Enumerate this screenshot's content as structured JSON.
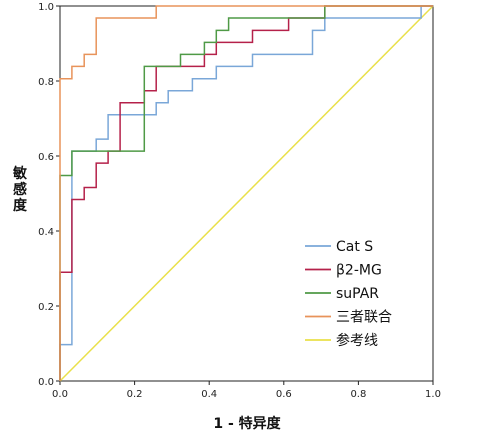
{
  "chart_data": {
    "type": "line",
    "title": "",
    "xlabel": "1 - 特异度",
    "ylabel": "敏感度",
    "xlim": [
      0,
      1
    ],
    "ylim": [
      0,
      1
    ],
    "x_ticks": [
      "0.0",
      "0.2",
      "0.4",
      "0.6",
      "0.8",
      "1.0"
    ],
    "y_ticks": [
      "0.0",
      "0.2",
      "0.4",
      "0.6",
      "0.8",
      "1.0"
    ],
    "grid": false,
    "legend_position": "bottom-right",
    "series": [
      {
        "name": "Cat S",
        "color": "#7aa7d8",
        "points": [
          [
            0,
            0
          ],
          [
            0,
            0.097
          ],
          [
            0.032,
            0.097
          ],
          [
            0.032,
            0.613
          ],
          [
            0.097,
            0.613
          ],
          [
            0.097,
            0.645
          ],
          [
            0.129,
            0.645
          ],
          [
            0.129,
            0.71
          ],
          [
            0.258,
            0.71
          ],
          [
            0.258,
            0.742
          ],
          [
            0.29,
            0.742
          ],
          [
            0.29,
            0.774
          ],
          [
            0.355,
            0.774
          ],
          [
            0.355,
            0.806
          ],
          [
            0.419,
            0.806
          ],
          [
            0.419,
            0.839
          ],
          [
            0.516,
            0.839
          ],
          [
            0.516,
            0.871
          ],
          [
            0.677,
            0.871
          ],
          [
            0.677,
            0.935
          ],
          [
            0.71,
            0.935
          ],
          [
            0.71,
            0.968
          ],
          [
            0.968,
            0.968
          ],
          [
            0.968,
            1
          ],
          [
            1,
            1
          ]
        ]
      },
      {
        "name": "β2-MG",
        "color": "#b5214a",
        "points": [
          [
            0,
            0
          ],
          [
            0,
            0.29
          ],
          [
            0.032,
            0.29
          ],
          [
            0.032,
            0.484
          ],
          [
            0.065,
            0.484
          ],
          [
            0.065,
            0.516
          ],
          [
            0.097,
            0.516
          ],
          [
            0.097,
            0.581
          ],
          [
            0.129,
            0.581
          ],
          [
            0.129,
            0.613
          ],
          [
            0.161,
            0.613
          ],
          [
            0.161,
            0.742
          ],
          [
            0.226,
            0.742
          ],
          [
            0.226,
            0.774
          ],
          [
            0.258,
            0.774
          ],
          [
            0.258,
            0.839
          ],
          [
            0.387,
            0.839
          ],
          [
            0.387,
            0.871
          ],
          [
            0.419,
            0.871
          ],
          [
            0.419,
            0.903
          ],
          [
            0.516,
            0.903
          ],
          [
            0.516,
            0.935
          ],
          [
            0.613,
            0.935
          ],
          [
            0.613,
            0.968
          ],
          [
            0.71,
            0.968
          ],
          [
            0.71,
            1
          ],
          [
            1,
            1
          ]
        ]
      },
      {
        "name": "suPAR",
        "color": "#4f9a46",
        "points": [
          [
            0,
            0
          ],
          [
            0,
            0.548
          ],
          [
            0.032,
            0.548
          ],
          [
            0.032,
            0.613
          ],
          [
            0.226,
            0.613
          ],
          [
            0.226,
            0.645
          ],
          [
            0.226,
            0.839
          ],
          [
            0.323,
            0.839
          ],
          [
            0.323,
            0.871
          ],
          [
            0.387,
            0.871
          ],
          [
            0.387,
            0.903
          ],
          [
            0.419,
            0.903
          ],
          [
            0.419,
            0.935
          ],
          [
            0.452,
            0.935
          ],
          [
            0.452,
            0.968
          ],
          [
            0.71,
            0.968
          ],
          [
            0.71,
            1
          ],
          [
            1,
            1
          ]
        ]
      },
      {
        "name": "三者联合",
        "color": "#e8935a",
        "points": [
          [
            0,
            0
          ],
          [
            0,
            0.806
          ],
          [
            0.032,
            0.806
          ],
          [
            0.032,
            0.839
          ],
          [
            0.065,
            0.839
          ],
          [
            0.065,
            0.871
          ],
          [
            0.097,
            0.871
          ],
          [
            0.097,
            0.968
          ],
          [
            0.258,
            0.968
          ],
          [
            0.258,
            1
          ],
          [
            1,
            1
          ]
        ]
      },
      {
        "name": "参考线",
        "color": "#e9e04a",
        "points": [
          [
            0,
            0
          ],
          [
            1,
            1
          ]
        ]
      }
    ]
  }
}
